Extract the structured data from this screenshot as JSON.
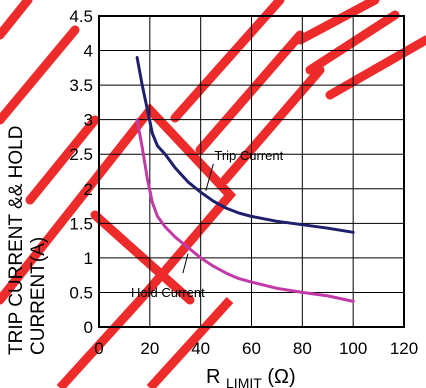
{
  "chart_data": {
    "type": "line",
    "title": "",
    "ylabel_lines": [
      "TRIP CURRENT && HOLD",
      "CURRENT(A)"
    ],
    "xlabel_main": "R",
    "xlabel_sub": "LIMIT",
    "xlabel_unit": "(Ω)",
    "xlim": [
      0,
      120
    ],
    "ylim": [
      0,
      4.5
    ],
    "x_ticks": [
      0,
      20,
      40,
      60,
      80,
      100,
      120
    ],
    "y_ticks": [
      0,
      0.5,
      1,
      1.5,
      2,
      2.5,
      3,
      3.5,
      4,
      4.5
    ],
    "grid": true,
    "series": [
      {
        "name": "Trip Current",
        "color": "#1f1f6e",
        "x": [
          15,
          17,
          19,
          21,
          23,
          26,
          30,
          35,
          40,
          45,
          50,
          55,
          60,
          70,
          80,
          90,
          100
        ],
        "y": [
          3.9,
          3.5,
          3.15,
          2.8,
          2.62,
          2.5,
          2.3,
          2.1,
          1.95,
          1.82,
          1.72,
          1.65,
          1.6,
          1.53,
          1.48,
          1.43,
          1.37
        ]
      },
      {
        "name": "Hold Current",
        "color": "#c23aa8",
        "x": [
          15,
          17,
          19,
          21,
          23,
          26,
          30,
          35,
          40,
          45,
          50,
          55,
          60,
          70,
          80,
          90,
          100
        ],
        "y": [
          3.0,
          2.6,
          2.15,
          1.8,
          1.6,
          1.45,
          1.3,
          1.15,
          1.0,
          0.88,
          0.78,
          0.7,
          0.65,
          0.56,
          0.5,
          0.45,
          0.37
        ]
      }
    ],
    "annotations": [
      {
        "label": "Trip Current",
        "series": 0
      },
      {
        "label": "Hold Current",
        "series": 1
      }
    ],
    "watermark_color": "#ee2b2b"
  }
}
